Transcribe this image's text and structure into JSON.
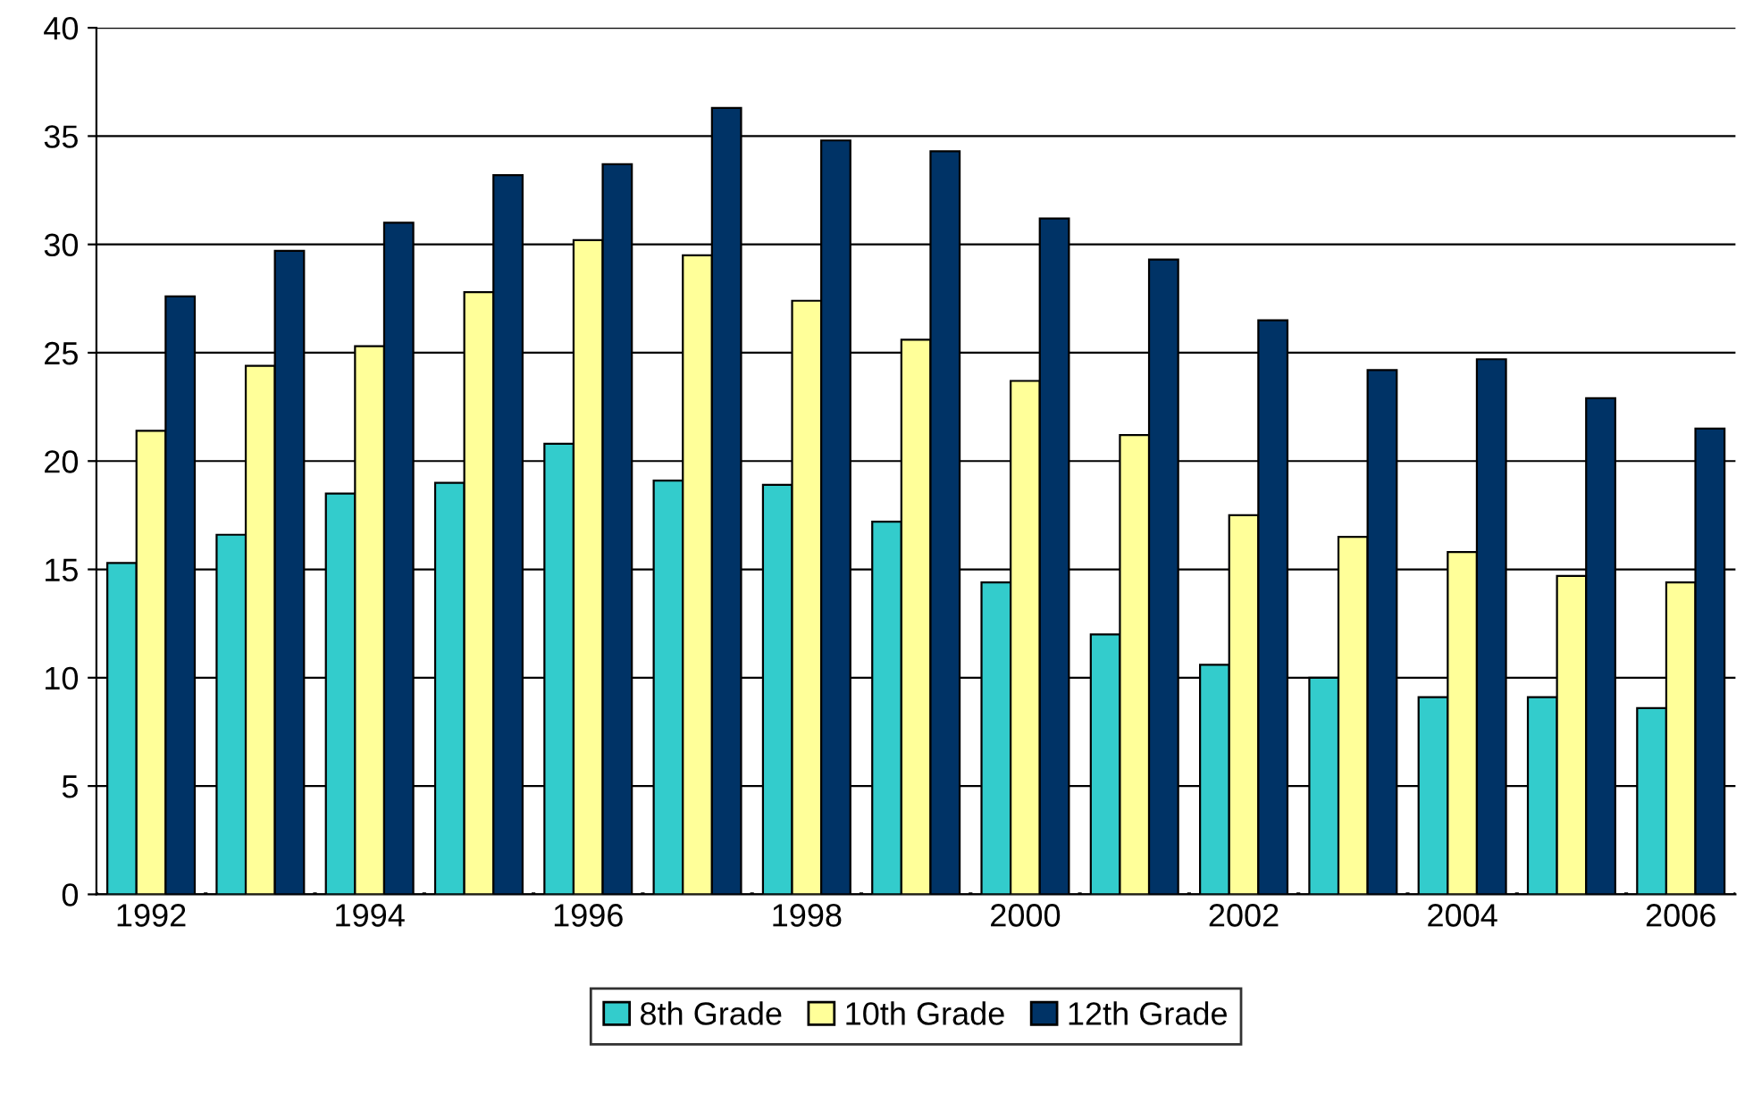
{
  "chart_data": {
    "type": "bar",
    "categories": [
      "1992",
      null,
      "1994",
      null,
      "1996",
      null,
      "1998",
      null,
      "2000",
      null,
      "2002",
      null,
      "2004",
      null,
      "2006"
    ],
    "series": [
      {
        "name": "8th Grade",
        "color": "#33cccc",
        "values": [
          15.3,
          16.6,
          18.5,
          19.0,
          20.8,
          19.1,
          18.9,
          17.2,
          14.4,
          12.0,
          10.6,
          10.0,
          9.1,
          9.1,
          8.6
        ]
      },
      {
        "name": "10th Grade",
        "color": "#ffff99",
        "values": [
          21.4,
          24.4,
          25.3,
          27.8,
          30.2,
          29.5,
          27.4,
          25.6,
          23.7,
          21.2,
          17.5,
          16.5,
          15.8,
          14.7,
          14.4
        ]
      },
      {
        "name": "12th Grade",
        "color": "#003366",
        "values": [
          27.6,
          29.7,
          31.0,
          33.2,
          33.7,
          36.3,
          34.8,
          34.3,
          31.2,
          29.3,
          26.5,
          24.2,
          24.7,
          22.9,
          21.5
        ]
      }
    ],
    "ylim": [
      0,
      40
    ],
    "yticks": [
      0,
      5,
      10,
      15,
      20,
      25,
      30,
      35,
      40
    ],
    "grid": "y",
    "legend": "bottom"
  }
}
